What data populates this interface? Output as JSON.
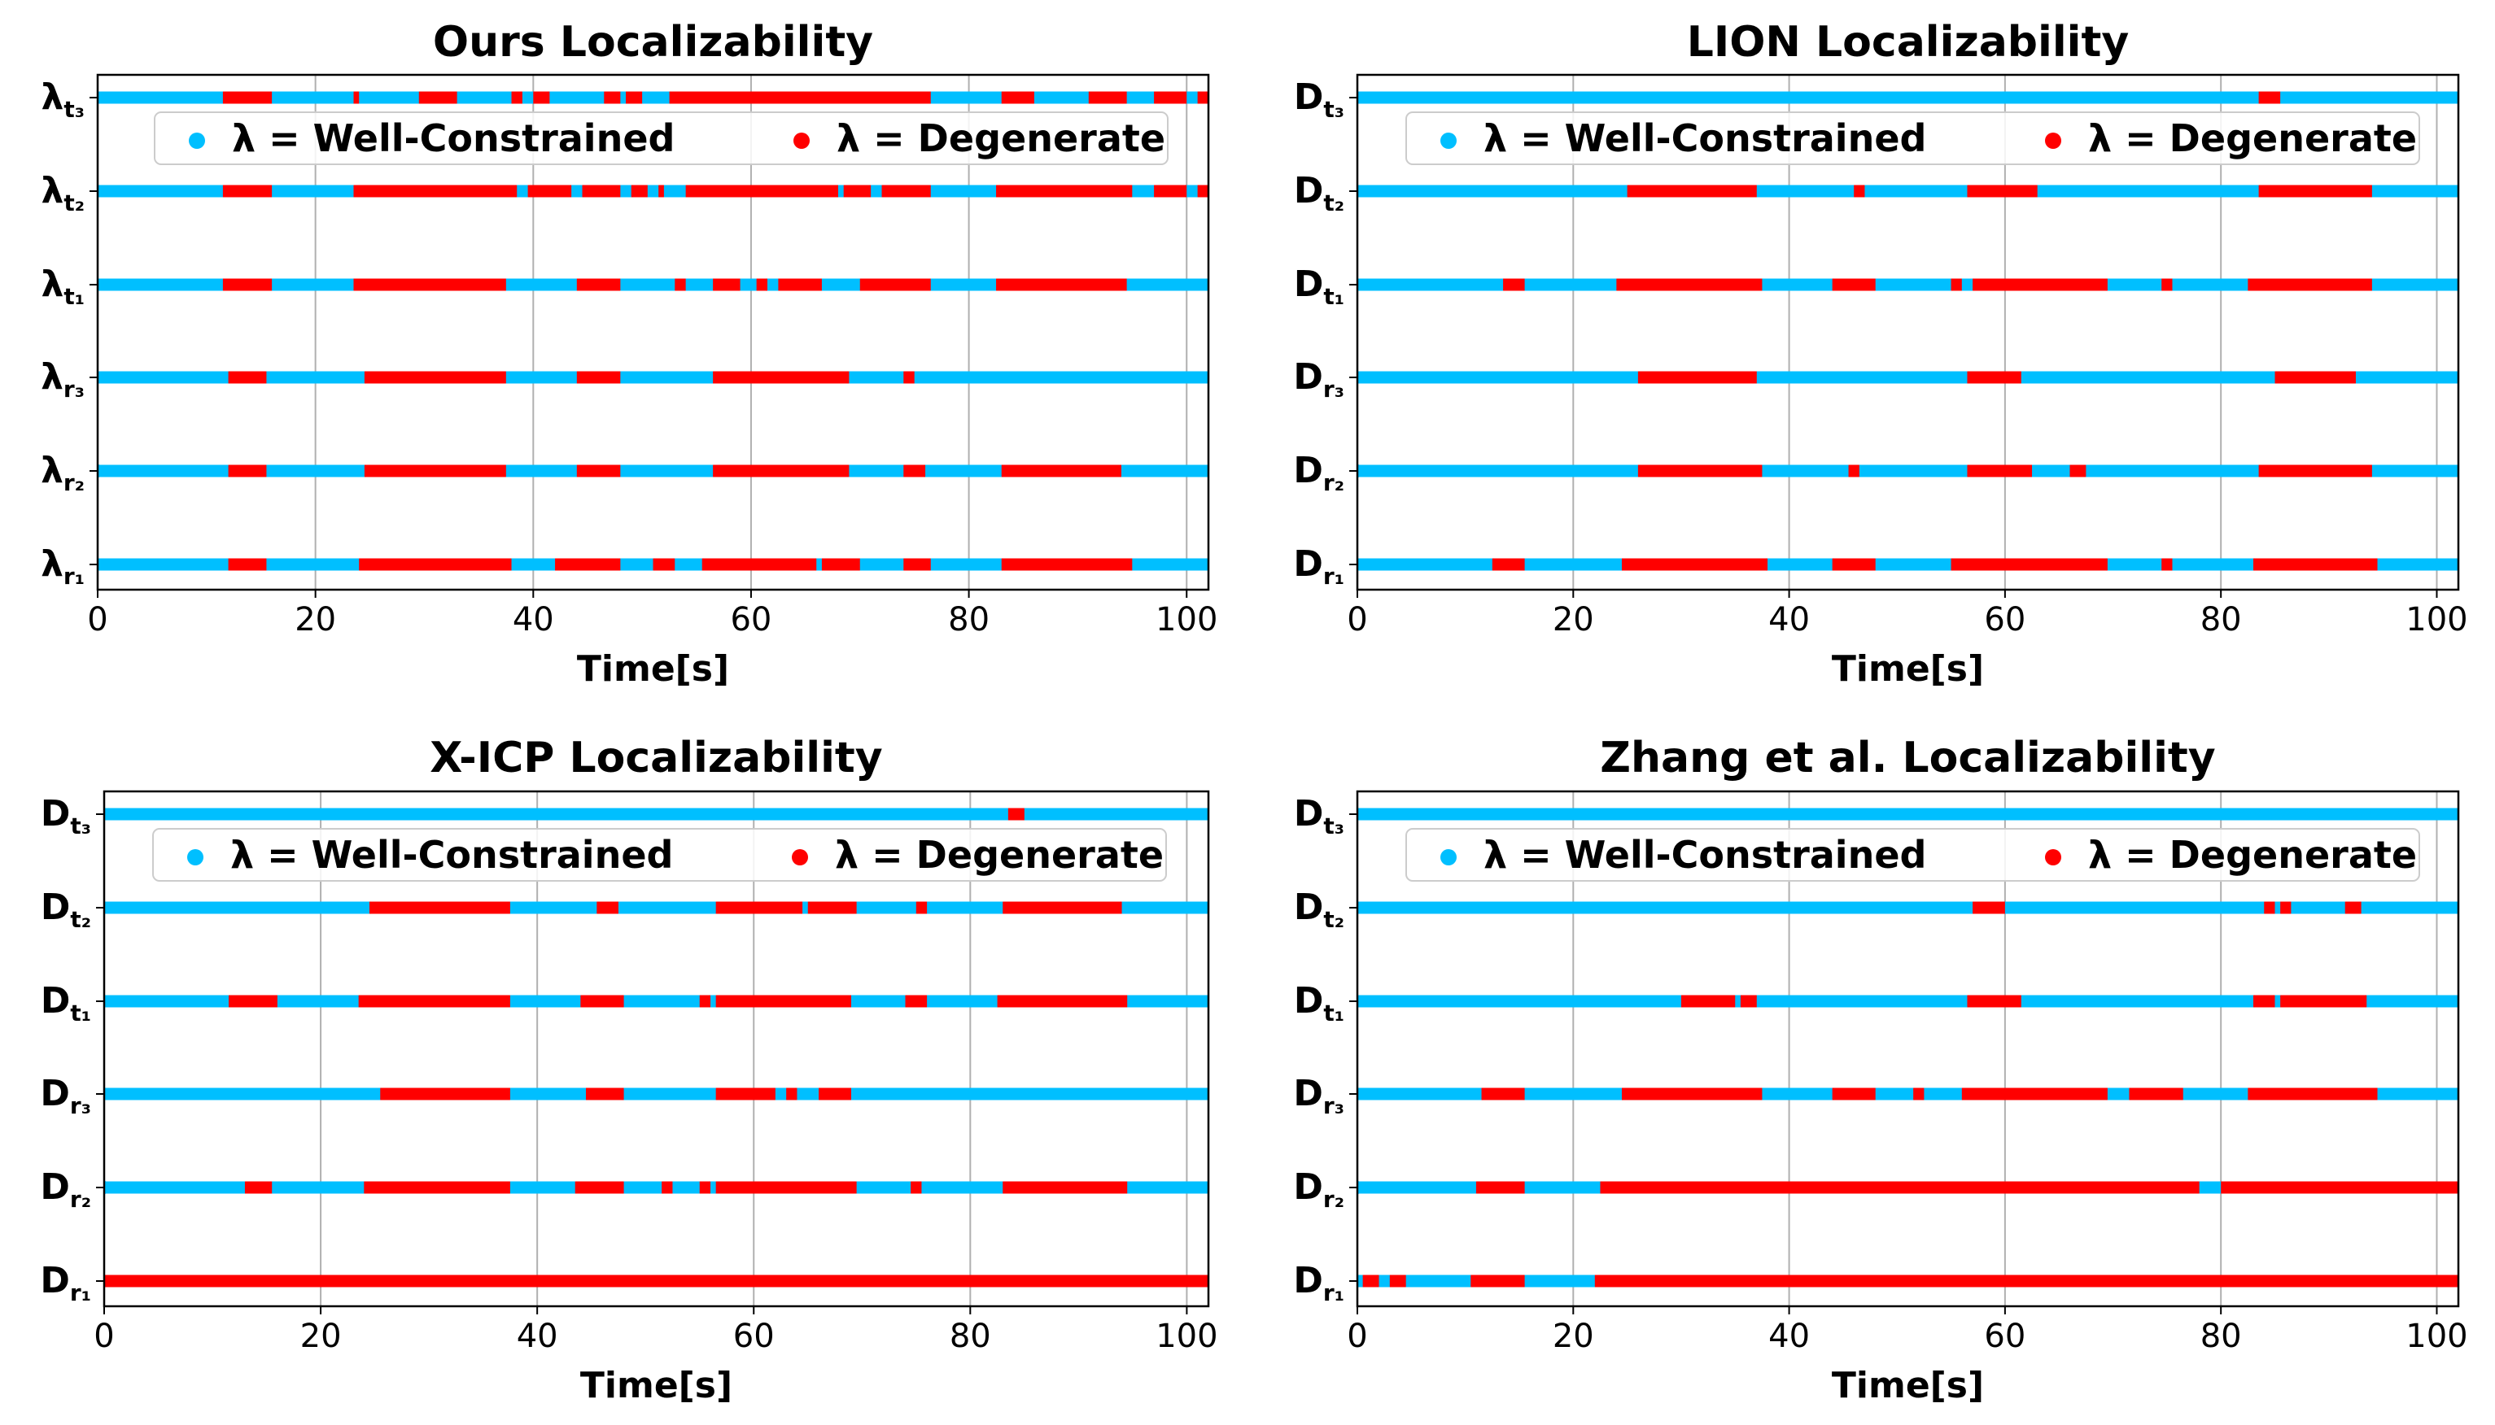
{
  "colors": {
    "well": "#00BFFF",
    "degenerate": "#FF0000",
    "grid": "#b0b0b0"
  },
  "legend": {
    "well_label": "λ = Well-Constrained",
    "degenerate_label": "λ = Degenerate"
  },
  "chart_data": [
    {
      "type": "timeline",
      "title": "Ours Localizability",
      "xlabel": "Time[s]",
      "xlim": [
        0,
        102
      ],
      "xticks": [
        "0",
        "20",
        "40",
        "60",
        "80",
        "100"
      ],
      "rows": [
        {
          "base": "λ",
          "sub": "t₃",
          "segments": [
            [
              11.5,
              16
            ],
            [
              23.5,
              24
            ],
            [
              29.5,
              33
            ],
            [
              38,
              39
            ],
            [
              40,
              41.5
            ],
            [
              46.5,
              48
            ],
            [
              48.5,
              50
            ],
            [
              52.5,
              76.5
            ],
            [
              83,
              86
            ],
            [
              91,
              94.5
            ],
            [
              97,
              100
            ],
            [
              101,
              102
            ]
          ]
        },
        {
          "base": "λ",
          "sub": "t₂",
          "segments": [
            [
              11.5,
              16
            ],
            [
              23.5,
              38.5
            ],
            [
              39.5,
              43.5
            ],
            [
              44.5,
              48
            ],
            [
              49,
              50.5
            ],
            [
              51.5,
              52
            ],
            [
              54,
              68
            ],
            [
              68.5,
              71
            ],
            [
              72,
              76.5
            ],
            [
              82.5,
              95
            ],
            [
              97,
              100
            ],
            [
              101,
              102
            ]
          ]
        },
        {
          "base": "λ",
          "sub": "t₁",
          "segments": [
            [
              11.5,
              16
            ],
            [
              23.5,
              37.5
            ],
            [
              44,
              48
            ],
            [
              53,
              54
            ],
            [
              56.5,
              59
            ],
            [
              60.5,
              61.5
            ],
            [
              62.5,
              66.5
            ],
            [
              70,
              76.5
            ],
            [
              82.5,
              94.5
            ]
          ]
        },
        {
          "base": "λ",
          "sub": "r₃",
          "segments": [
            [
              12,
              15.5
            ],
            [
              24.5,
              37.5
            ],
            [
              44,
              48
            ],
            [
              56.5,
              69
            ],
            [
              74,
              75
            ]
          ]
        },
        {
          "base": "λ",
          "sub": "r₂",
          "segments": [
            [
              12,
              15.5
            ],
            [
              24.5,
              37.5
            ],
            [
              44,
              48
            ],
            [
              56.5,
              69
            ],
            [
              74,
              76
            ],
            [
              83,
              94
            ]
          ]
        },
        {
          "base": "λ",
          "sub": "r₁",
          "segments": [
            [
              12,
              15.5
            ],
            [
              24,
              38
            ],
            [
              42,
              48
            ],
            [
              51,
              53
            ],
            [
              55.5,
              66
            ],
            [
              66.5,
              70
            ],
            [
              74,
              76.5
            ],
            [
              83,
              95
            ]
          ]
        }
      ]
    },
    {
      "type": "timeline",
      "title": "LION Localizability",
      "xlabel": "Time[s]",
      "xlim": [
        0,
        102
      ],
      "xticks": [
        "0",
        "20",
        "40",
        "60",
        "80",
        "100"
      ],
      "rows": [
        {
          "base": "D",
          "sub": "t₃",
          "segments": [
            [
              83.5,
              85.5
            ]
          ]
        },
        {
          "base": "D",
          "sub": "t₂",
          "segments": [
            [
              25,
              37
            ],
            [
              46,
              47
            ],
            [
              56.5,
              63
            ],
            [
              83.5,
              94
            ]
          ]
        },
        {
          "base": "D",
          "sub": "t₁",
          "segments": [
            [
              13.5,
              15.5
            ],
            [
              24,
              37.5
            ],
            [
              44,
              48
            ],
            [
              55,
              56
            ],
            [
              57,
              69.5
            ],
            [
              74.5,
              75.5
            ],
            [
              82.5,
              94
            ]
          ]
        },
        {
          "base": "D",
          "sub": "r₃",
          "segments": [
            [
              26,
              37
            ],
            [
              56.5,
              61.5
            ],
            [
              85,
              92.5
            ]
          ]
        },
        {
          "base": "D",
          "sub": "r₂",
          "segments": [
            [
              26,
              37.5
            ],
            [
              45.5,
              46.5
            ],
            [
              56.5,
              62.5
            ],
            [
              66,
              67.5
            ],
            [
              83.5,
              94
            ]
          ]
        },
        {
          "base": "D",
          "sub": "r₁",
          "segments": [
            [
              12.5,
              15.5
            ],
            [
              24.5,
              38
            ],
            [
              44,
              48
            ],
            [
              55,
              69.5
            ],
            [
              74.5,
              75.5
            ],
            [
              83,
              94.5
            ]
          ]
        }
      ]
    },
    {
      "type": "timeline",
      "title": "X-ICP Localizability",
      "xlabel": "Time[s]",
      "xlim": [
        0,
        102
      ],
      "xticks": [
        "0",
        "20",
        "40",
        "60",
        "80",
        "100"
      ],
      "rows": [
        {
          "base": "D",
          "sub": "t₃",
          "segments": [
            [
              83.5,
              85
            ]
          ]
        },
        {
          "base": "D",
          "sub": "t₂",
          "segments": [
            [
              24.5,
              37.5
            ],
            [
              45.5,
              47.5
            ],
            [
              56.5,
              64.5
            ],
            [
              65,
              69.5
            ],
            [
              75,
              76
            ],
            [
              83,
              94
            ]
          ]
        },
        {
          "base": "D",
          "sub": "t₁",
          "segments": [
            [
              11.5,
              16
            ],
            [
              23.5,
              37.5
            ],
            [
              44,
              48
            ],
            [
              55,
              56
            ],
            [
              56.5,
              69
            ],
            [
              74,
              76
            ],
            [
              82.5,
              94.5
            ]
          ]
        },
        {
          "base": "D",
          "sub": "r₃",
          "segments": [
            [
              25.5,
              37.5
            ],
            [
              44.5,
              48
            ],
            [
              56.5,
              62
            ],
            [
              63,
              64
            ],
            [
              66,
              69
            ]
          ]
        },
        {
          "base": "D",
          "sub": "r₂",
          "segments": [
            [
              13,
              15.5
            ],
            [
              24,
              37.5
            ],
            [
              43.5,
              48
            ],
            [
              51.5,
              52.5
            ],
            [
              55,
              56
            ],
            [
              56.5,
              69.5
            ],
            [
              74.5,
              75.5
            ],
            [
              83,
              94.5
            ]
          ]
        },
        {
          "base": "D",
          "sub": "r₁",
          "segments": [
            [
              0,
              102
            ]
          ]
        }
      ]
    },
    {
      "type": "timeline",
      "title": "Zhang et al. Localizability",
      "xlabel": "Time[s]",
      "xlim": [
        0,
        102
      ],
      "xticks": [
        "0",
        "20",
        "40",
        "60",
        "80",
        "100"
      ],
      "rows": [
        {
          "base": "D",
          "sub": "t₃",
          "segments": []
        },
        {
          "base": "D",
          "sub": "t₂",
          "segments": [
            [
              57,
              60
            ],
            [
              84,
              85
            ],
            [
              85.5,
              86.5
            ],
            [
              91.5,
              93
            ]
          ]
        },
        {
          "base": "D",
          "sub": "t₁",
          "segments": [
            [
              30,
              35
            ],
            [
              35.5,
              37
            ],
            [
              56.5,
              61.5
            ],
            [
              83,
              85
            ],
            [
              85.5,
              93.5
            ]
          ]
        },
        {
          "base": "D",
          "sub": "r₃",
          "segments": [
            [
              11.5,
              15.5
            ],
            [
              24.5,
              37.5
            ],
            [
              44,
              48
            ],
            [
              51.5,
              52.5
            ],
            [
              56,
              69.5
            ],
            [
              71.5,
              76.5
            ],
            [
              82.5,
              94.5
            ]
          ]
        },
        {
          "base": "D",
          "sub": "r₂",
          "segments": [
            [
              11,
              15.5
            ],
            [
              22.5,
              78
            ],
            [
              80,
              102
            ]
          ]
        },
        {
          "base": "D",
          "sub": "r₁",
          "segments": [
            [
              0.5,
              2
            ],
            [
              3,
              4.5
            ],
            [
              10.5,
              15.5
            ],
            [
              22,
              102
            ]
          ]
        }
      ]
    }
  ]
}
